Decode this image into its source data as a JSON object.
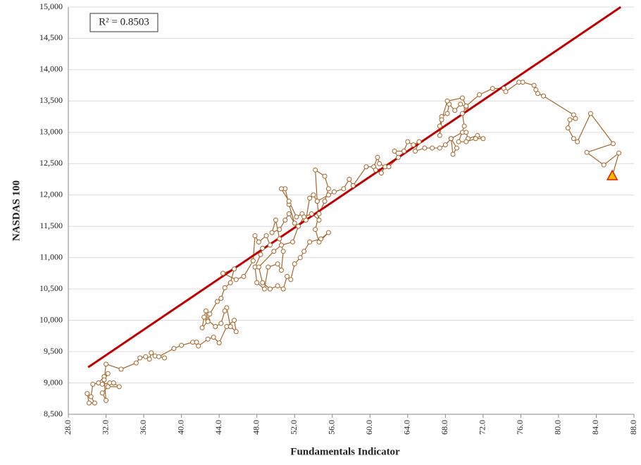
{
  "chart_data": {
    "type": "scatter-line",
    "annotation": "R² = 0.8503",
    "x_label": "Fundamentals Indicator",
    "y_label": "NASDAS 100",
    "xlim": [
      28,
      88
    ],
    "ylim": [
      8500,
      15000
    ],
    "xticks": [
      {
        "value": 28,
        "label": "28.0"
      },
      {
        "value": 32,
        "label": "32.0"
      },
      {
        "value": 36,
        "label": "36.0"
      },
      {
        "value": 40,
        "label": "40.0"
      },
      {
        "value": 44,
        "label": "44.0"
      },
      {
        "value": 48,
        "label": "48.0"
      },
      {
        "value": 52,
        "label": "52.0"
      },
      {
        "value": 56,
        "label": "56.0"
      },
      {
        "value": 60,
        "label": "60.0"
      },
      {
        "value": 64,
        "label": "64.0"
      },
      {
        "value": 68,
        "label": "68.0"
      },
      {
        "value": 72,
        "label": "72.0"
      },
      {
        "value": 76,
        "label": "76.0"
      },
      {
        "value": 80,
        "label": "80.0"
      },
      {
        "value": 84,
        "label": "84.0"
      },
      {
        "value": 88,
        "label": "88.0"
      }
    ],
    "yticks": [
      {
        "value": 8500,
        "label": "8,500"
      },
      {
        "value": 9000,
        "label": "9,000"
      },
      {
        "value": 9500,
        "label": "9,500"
      },
      {
        "value": 10000,
        "label": "10,000"
      },
      {
        "value": 10500,
        "label": "10,500"
      },
      {
        "value": 11000,
        "label": "11,000"
      },
      {
        "value": 11500,
        "label": "11,500"
      },
      {
        "value": 12000,
        "label": "12,000"
      },
      {
        "value": 12500,
        "label": "12,500"
      },
      {
        "value": 13000,
        "label": "13,000"
      },
      {
        "value": 13500,
        "label": "13,500"
      },
      {
        "value": 14000,
        "label": "14,000"
      },
      {
        "value": 14500,
        "label": "14,500"
      },
      {
        "value": 15000,
        "label": "15,000"
      }
    ],
    "grid": true,
    "series": [
      {
        "color": "#a8652a",
        "x": [
          30.0,
          30.2,
          30.8,
          30.4,
          30.6,
          31.2,
          31.8,
          32.2,
          31.6,
          32.4,
          32.8,
          33.4,
          32.2,
          31.6,
          32.0,
          31.8,
          32.0,
          33.6,
          35.2,
          35.6,
          36.2,
          36.6,
          36.8,
          37.2,
          38.2,
          37.6,
          39.2,
          40.0,
          41.2,
          41.6,
          41.8,
          42.8,
          43.4,
          44.0,
          44.8,
          45.6,
          45.8,
          45.2,
          44.8,
          44.6,
          44.2,
          43.6,
          42.8,
          42.6,
          42.4,
          42.2,
          42.8,
          43.0,
          43.8,
          44.2,
          44.6,
          45.2,
          45.6,
          44.4,
          45.8,
          46.6,
          47.6,
          47.8,
          48.2,
          49.0,
          49.4,
          48.6,
          48.4,
          47.8,
          48.0,
          48.8,
          49.2,
          50.2,
          50.6,
          50.8,
          50.4,
          50.0,
          49.6,
          50.4,
          51.0,
          51.4,
          52.0,
          51.4,
          51.0,
          50.6,
          51.4,
          52.2,
          52.8,
          53.2,
          53.6,
          54.0,
          54.4,
          54.2,
          55.2,
          55.6,
          55.2,
          54.6,
          54.2,
          54.6,
          55.6,
          54.8,
          53.6,
          53.0,
          52.6,
          52.0,
          51.6,
          51.2,
          50.8,
          50.2,
          49.4,
          48.6,
          48.2,
          49.8,
          50.6,
          51.8,
          52.4,
          53.0,
          53.8,
          54.6,
          54.4,
          55.6,
          56.2,
          57.2,
          57.8,
          58.2,
          59.6,
          60.4,
          60.8,
          61.0,
          61.6,
          61.2,
          60.6,
          62.0,
          63.0,
          62.6,
          63.6,
          64.0,
          64.6,
          65.2,
          64.8,
          65.8,
          66.6,
          67.4,
          68.0,
          68.6,
          69.2,
          68.8,
          68.6,
          69.8,
          70.2,
          70.4,
          71.4,
          72.0,
          71.2,
          70.2,
          69.4,
          70.0,
          69.8,
          70.2,
          69.6,
          69.0,
          68.4,
          68.2,
          67.6,
          67.4,
          67.4,
          67.6,
          68.2,
          69.8,
          70.2,
          71.6,
          73.0,
          74.2,
          74.4,
          75.8,
          76.2,
          77.4,
          77.6,
          77.8,
          78.4,
          81.6,
          81.8,
          81.2,
          81.0,
          81.6,
          82.0,
          83.4,
          85.8,
          83.0,
          84.8,
          86.4,
          85.7
        ],
        "y": [
          8830,
          8680,
          8680,
          8780,
          8980,
          9000,
          9100,
          9150,
          8980,
          9000,
          9000,
          8940,
          8940,
          8840,
          8720,
          9050,
          9300,
          9220,
          9320,
          9400,
          9420,
          9380,
          9480,
          9430,
          9400,
          9420,
          9550,
          9600,
          9650,
          9650,
          9590,
          9700,
          9730,
          9640,
          9900,
          10000,
          9820,
          9900,
          10200,
          10150,
          9950,
          9900,
          10000,
          10150,
          10050,
          9880,
          9980,
          10100,
          10300,
          10350,
          10520,
          10600,
          10820,
          10750,
          10650,
          10700,
          10950,
          11350,
          11250,
          11350,
          11200,
          11150,
          11050,
          10850,
          10600,
          10500,
          10850,
          10900,
          10800,
          11100,
          11300,
          11600,
          11400,
          11450,
          11600,
          11700,
          11550,
          11850,
          12100,
          12100,
          11900,
          11650,
          11700,
          11600,
          11950,
          12000,
          11900,
          12400,
          12300,
          12100,
          11900,
          11700,
          11450,
          11250,
          11400,
          11300,
          11250,
          11100,
          11000,
          10900,
          10650,
          10700,
          10500,
          10550,
          10500,
          10600,
          10850,
          11100,
          11200,
          11250,
          11500,
          11650,
          11700,
          11600,
          11900,
          12000,
          12050,
          12100,
          12250,
          12150,
          12450,
          12450,
          12600,
          12500,
          12450,
          12350,
          12400,
          12450,
          12600,
          12700,
          12700,
          12850,
          12800,
          12850,
          12700,
          12750,
          12750,
          12750,
          12800,
          12900,
          12750,
          12650,
          12900,
          13000,
          13000,
          12900,
          12950,
          12900,
          12900,
          12850,
          12850,
          13100,
          13300,
          13400,
          13450,
          13350,
          13450,
          13300,
          13250,
          13100,
          12950,
          13200,
          13500,
          13550,
          13420,
          13600,
          13700,
          13700,
          13650,
          13800,
          13800,
          13750,
          13680,
          13620,
          13580,
          13280,
          13220,
          13200,
          13070,
          12900,
          12850,
          13300,
          12820,
          12680,
          12480,
          12670,
          12300
        ]
      }
    ],
    "end_marker": {
      "shape": "triangle",
      "fill": "#f5b800",
      "stroke": "#e02000"
    },
    "trendline": {
      "x": [
        30.1,
        86.6
      ],
      "y": [
        9250,
        15000
      ],
      "color": "#c00000"
    }
  }
}
